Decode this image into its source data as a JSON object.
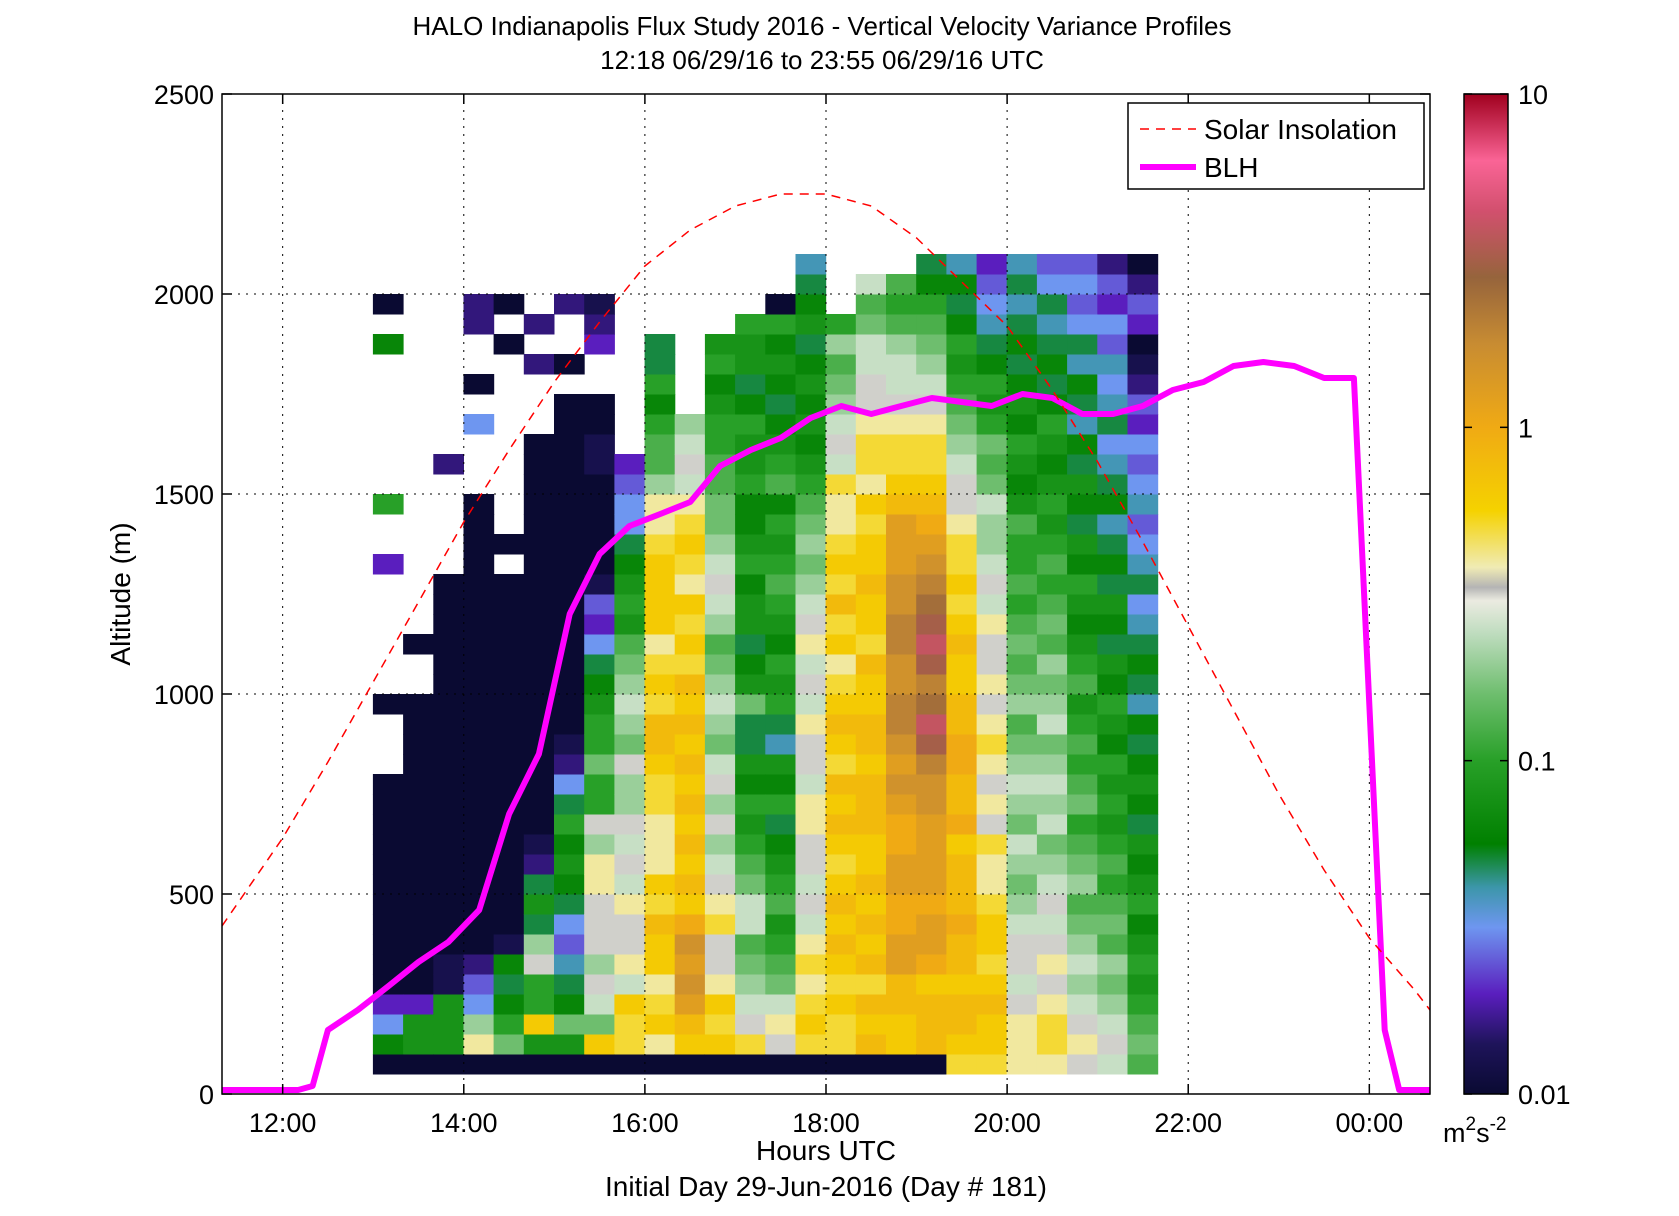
{
  "chart_data": {
    "type": "heatmap",
    "title": "HALO Indianapolis Flux Study 2016 - Vertical Velocity Variance Profiles",
    "subtitle": "12:18 06/29/16 to 23:55 06/29/16  UTC",
    "xlabel": "Hours UTC",
    "xlabel2": "Initial Day 29-Jun-2016 (Day # 181)",
    "ylabel": "Altitude (m)",
    "x_range_hours": [
      11.33,
      24.67
    ],
    "ylim": [
      0,
      2500
    ],
    "x_ticks": [
      {
        "hour": 12,
        "label": "12:00"
      },
      {
        "hour": 14,
        "label": "14:00"
      },
      {
        "hour": 16,
        "label": "16:00"
      },
      {
        "hour": 18,
        "label": "18:00"
      },
      {
        "hour": 20,
        "label": "20:00"
      },
      {
        "hour": 22,
        "label": "22:00"
      },
      {
        "hour": 24,
        "label": "00:00"
      }
    ],
    "y_ticks": [
      0,
      500,
      1000,
      1500,
      2000,
      2500
    ],
    "grid": true,
    "legend_position": "top-right",
    "colorbar": {
      "scale": "log",
      "range": [
        0.01,
        10
      ],
      "ticks": [
        {
          "value": 0.01,
          "label": "0.01"
        },
        {
          "value": 0.1,
          "label": "0.1"
        },
        {
          "value": 1,
          "label": "1"
        },
        {
          "value": 10,
          "label": "10"
        }
      ],
      "unit_base": "m",
      "unit_sup1": "2",
      "unit_mid": "s",
      "unit_sup2": "-2"
    },
    "heatmap_grid": {
      "x_start_hour": 12.33,
      "x_step_hour": 0.3333,
      "y_start_m": 50,
      "y_step_m": 50,
      "note_columns": "each column lists log10 of variance from 50 m upward; null = no data"
    },
    "heatmap_columns": [
      [],
      [],
      [
        -2,
        -1.2,
        -1.5,
        -1.7,
        -2,
        -2,
        -2,
        -2,
        -2,
        -2,
        -2,
        -2,
        -2,
        -2,
        -2,
        null,
        null,
        null,
        -2,
        null,
        null,
        null,
        null,
        null,
        null,
        -1.7,
        null,
        null,
        -1,
        null,
        null,
        null,
        null,
        null,
        null,
        null,
        -1.2,
        null,
        -2,
        null
      ],
      [
        -2,
        -1.1,
        -1.1,
        -1.7,
        -2,
        -2,
        -2,
        -2,
        -2,
        -2,
        -2,
        -2,
        -2,
        -2,
        -2,
        -2,
        -2,
        -2,
        -2,
        null,
        null,
        -2,
        null
      ],
      [
        -2,
        -1.1,
        -1.1,
        -1.1,
        -1.9,
        -1.9,
        -2,
        -2,
        -2,
        -2,
        -2,
        -2,
        -2,
        -2,
        -2,
        -2,
        -2,
        -2,
        -2,
        -2,
        -2,
        -2,
        -2,
        -2,
        -2,
        null,
        null,
        null,
        null,
        null,
        -1.8,
        null,
        null
      ],
      [
        -2,
        -0.4,
        -0.7,
        -1.5,
        -1.6,
        -1.8,
        -2,
        -2,
        -2,
        -2,
        -2,
        -2,
        -2,
        -2,
        -2,
        -2,
        -2,
        -2,
        -2,
        -2,
        -2,
        -2,
        -2,
        -2,
        -2,
        -2,
        -2,
        -2,
        -2,
        null,
        null,
        null,
        -1.5,
        null,
        -2,
        null,
        null,
        -1.8,
        -1.8
      ],
      [
        -2,
        -0.8,
        -1.0,
        -1.2,
        -1.3,
        -1.2,
        -1.9,
        -2,
        -2,
        -2,
        -2,
        -2,
        -2,
        -2,
        -2,
        -2,
        -2,
        -2,
        -2,
        -2,
        -2,
        -2,
        -2,
        -2,
        -2,
        null,
        -2,
        null,
        null,
        null,
        null,
        null,
        null,
        null,
        null,
        null,
        -2,
        null,
        -2,
        null
      ],
      [
        -2,
        -1.1,
        -0.2,
        -1.0,
        -1.0,
        -0.5,
        -0.7,
        -1.3,
        -1.1,
        -1.3,
        -1.8,
        -1.9,
        -2,
        -2,
        -2,
        -2,
        -2,
        -2,
        -2,
        -2,
        -2,
        -2,
        -2,
        -2,
        -2,
        -2,
        -2,
        -2,
        -2,
        -2,
        -2,
        -2,
        null,
        null,
        null,
        -1.8,
        null,
        -1.8,
        null
      ],
      [
        -2,
        -1.1,
        -0.8,
        -1.2,
        -1.3,
        -1.4,
        -1.6,
        -1.5,
        -1.3,
        -1.2,
        -1.1,
        -1.2,
        -1.0,
        -1.3,
        -1.5,
        -1.8,
        -1.9,
        -2,
        -2,
        -2,
        -2,
        -2,
        -2,
        -2,
        -2,
        -2,
        -2,
        -2,
        -2,
        -2,
        -2,
        -2,
        -2,
        -2,
        null,
        -2,
        null,
        null,
        -1.8
      ],
      [
        -2,
        -0.2,
        -0.8,
        -0.6,
        -0.5,
        -0.7,
        -0.5,
        -0.5,
        -0.5,
        -0.4,
        -0.4,
        -0.7,
        -0.5,
        -1.0,
        -1.0,
        -0.8,
        -1.0,
        -1.0,
        -1.1,
        -1.2,
        -1.3,
        -1.5,
        -1.7,
        -1.6,
        -1.9,
        -2,
        -2,
        -2,
        -2,
        -2,
        -1.9,
        -1.9,
        -2,
        -2,
        null,
        null,
        -1.7,
        -1.8,
        -1.9
      ],
      [
        -2,
        -0.3,
        -0.3,
        -0.2,
        -0.6,
        -0.4,
        -0.5,
        -0.5,
        -0.4,
        -0.6,
        -0.5,
        -0.6,
        -0.5,
        -0.7,
        -0.7,
        -0.5,
        -0.8,
        -0.7,
        -0.6,
        -0.7,
        -0.8,
        -0.9,
        -1.1,
        -1.0,
        -1.1,
        -1.2,
        -1.3,
        -1.5,
        -1.5,
        -1.6,
        -1.7
      ],
      [
        -2,
        -0.4,
        -0.2,
        -0.3,
        -0.4,
        -0.2,
        -0.2,
        -0.1,
        -0.3,
        -0.2,
        -0.4,
        -0.4,
        -0.4,
        -0.3,
        -0.3,
        -0.2,
        -0.1,
        -0.1,
        -0.3,
        -0.2,
        -0.3,
        -0.4,
        -0.2,
        -0.2,
        -0.2,
        -0.2,
        -0.3,
        -0.4,
        -0.4,
        -0.7,
        -0.9,
        -0.9,
        -1.0,
        -1.2,
        -1.0,
        -1.3,
        -1.3
      ],
      [
        -2,
        -0.2,
        -0.1,
        0.1,
        0.2,
        0.1,
        0.2,
        0.0,
        -0.2,
        -0.1,
        -0.2,
        -0.1,
        -0.2,
        -0.1,
        -0.2,
        -0.1,
        -0.2,
        -0.1,
        -0.2,
        -0.1,
        -0.3,
        -0.2,
        -0.3,
        -0.2,
        -0.4,
        -0.3,
        -0.2,
        -0.3,
        -0.4,
        -0.6,
        -0.5,
        -0.6,
        -0.7
      ],
      [
        -2,
        -0.2,
        -0.3,
        -0.2,
        -0.4,
        -0.5,
        -0.5,
        -0.3,
        -0.4,
        -0.5,
        -0.6,
        -0.7,
        -0.5,
        -0.7,
        -0.5,
        -0.6,
        -0.8,
        -0.7,
        -0.6,
        -0.7,
        -0.8,
        -0.9,
        -0.7,
        -0.6,
        -0.5,
        -0.6,
        -0.7,
        -0.8,
        -0.8,
        -0.9,
        -0.9,
        -1.0,
        -1.0,
        -1.1,
        -1.2,
        -1.0,
        -1.1
      ],
      [
        -2,
        -0.3,
        -0.5,
        -0.6,
        -0.7,
        -0.8,
        -0.9,
        -0.6,
        -0.6,
        -0.8,
        -0.9,
        -1.0,
        -1.1,
        -1.0,
        -1.2,
        -1.1,
        -1.3,
        -1.3,
        -0.8,
        -1.1,
        -1.2,
        -1.3,
        -1.1,
        -1.1,
        -1.2,
        -1.0,
        -1.1,
        -1.2,
        -1.2,
        -1.0,
        -1.1,
        -1.1,
        -1.0,
        -1.2,
        -1.3,
        -1.1,
        -1.1,
        -1.0
      ],
      [
        -2,
        -0.5,
        -0.4,
        -0.6,
        -0.8,
        -0.9,
        -1.0,
        -1.1,
        -0.9,
        -1.0,
        -1.1,
        -1.2,
        -1.3,
        -1.0,
        -1.2,
        -1.1,
        -1.4,
        -1.3,
        -1.0,
        -1.1,
        -1.0,
        -1.2,
        -1.1,
        -1.0,
        -0.9,
        -1.0,
        -1.1,
        -1.0,
        -1.2,
        -0.9,
        -1.0,
        -1.1,
        -1.2,
        -1.3,
        -1.2,
        -1.1,
        -1.2,
        -1.0,
        -2
      ],
      [
        -2,
        -0.3,
        -0.2,
        -0.3,
        -0.4,
        -0.3,
        -0.4,
        -0.6,
        -0.5,
        -0.6,
        -0.5,
        -0.5,
        -0.4,
        -0.4,
        -0.6,
        -0.5,
        -0.5,
        -0.4,
        -0.6,
        -0.5,
        -0.6,
        -0.4,
        -0.5,
        -0.6,
        -0.7,
        -0.8,
        -0.7,
        -0.8,
        -0.9,
        -1.0,
        -1.1,
        -1.2,
        -1.1,
        -1.2,
        -1.1,
        -1.2,
        -1.3,
        -1.1,
        -1.2,
        -1.3,
        -1.4
      ],
      [
        -2,
        -0.3,
        -0.3,
        -0.2,
        -0.3,
        -0.2,
        -0.1,
        -0.2,
        -0.1,
        -0.2,
        -0.3,
        -0.2,
        -0.1,
        -0.2,
        -0.1,
        -0.3,
        -0.2,
        -0.1,
        -0.2,
        -0.3,
        -0.4,
        -0.2,
        -0.3,
        -0.1,
        -0.3,
        -0.2,
        -0.3,
        -0.4,
        -0.4,
        -0.3,
        -0.6,
        -0.5,
        -0.6,
        -0.7,
        -0.8,
        -0.9,
        -0.7,
        -1.0
      ],
      [
        -2,
        -0.1,
        -0.2,
        -0.1,
        -0.3,
        -0.1,
        -0.2,
        -0.1,
        -0.2,
        -0.1,
        -0.2,
        -0.2,
        -0.1,
        -0.1,
        -0.1,
        -0.2,
        -0.1,
        -0.1,
        -0.2,
        -0.2,
        -0.1,
        -0.3,
        -0.2,
        -0.2,
        -0.1,
        -0.2,
        -0.2,
        -0.3,
        -0.2,
        -0.4,
        -0.3,
        -0.3,
        -0.4,
        -0.5,
        -0.5,
        -0.6,
        -0.6,
        -0.8,
        -0.9,
        -0.6
      ],
      [
        -2,
        -0.2,
        -0.2,
        -0.1,
        -0.1,
        0.1,
        0.1,
        0.0,
        0.0,
        0.1,
        0.1,
        0.0,
        0.0,
        0.1,
        0.2,
        0.1,
        0.2,
        0.3,
        0.3,
        0.2,
        0.2,
        0.3,
        0.3,
        0.2,
        0.2,
        0.1,
        0.1,
        0.1,
        -0.1,
        -0.2,
        -0.3,
        -0.3,
        -0.4,
        -0.5,
        -0.6,
        -0.6,
        -0.7,
        -0.9,
        -1.0,
        -0.9
      ],
      [
        -2,
        -0.1,
        -0.1,
        -0.1,
        -0.2,
        0.0,
        0.1,
        0.1,
        0.0,
        0.1,
        0.1,
        0.1,
        0.1,
        0.2,
        0.2,
        0.3,
        0.5,
        0.6,
        0.4,
        0.3,
        0.5,
        0.6,
        0.5,
        0.4,
        0.3,
        0.2,
        0.1,
        0.0,
        -0.1,
        -0.2,
        -0.3,
        -0.3,
        -0.4,
        -0.5,
        -0.6,
        -0.7,
        -0.8,
        -0.9,
        -1.0,
        -1.2,
        -1.3
      ],
      [
        -0.3,
        -0.2,
        -0.1,
        -0.1,
        -0.2,
        -0.1,
        -0.1,
        0.0,
        -0.1,
        -0.1,
        -0.1,
        -0.2,
        0.0,
        -0.1,
        -0.1,
        0.0,
        0.0,
        -0.1,
        -0.1,
        -0.2,
        -0.2,
        -0.1,
        -0.2,
        -0.3,
        -0.2,
        -0.3,
        -0.3,
        -0.4,
        -0.5,
        -0.5,
        -0.6,
        -0.7,
        -0.8,
        -0.9,
        -1.0,
        -1.1,
        -1.0,
        -1.2,
        -1.3,
        -1.2,
        -1.4
      ],
      [
        -0.3,
        -0.2,
        -0.2,
        -0.1,
        -0.2,
        -0.3,
        -0.2,
        -0.2,
        -0.3,
        -0.4,
        -0.4,
        -0.3,
        -0.5,
        -0.4,
        -0.5,
        -0.4,
        -0.3,
        -0.4,
        -0.5,
        -0.4,
        -0.5,
        -0.5,
        -0.4,
        -0.6,
        -0.5,
        -0.6,
        -0.7,
        -0.7,
        -0.6,
        -0.8,
        -0.9,
        -0.8,
        -1.0,
        -1.1,
        -1.0,
        -1.2,
        -1.3,
        -1.4,
        -1.5,
        -1.6,
        -1.7
      ],
      [
        -0.4,
        -0.4,
        -0.4,
        -0.5,
        -0.6,
        -0.5,
        -0.5,
        -0.6,
        -0.7,
        -0.8,
        -0.7,
        -0.6,
        -0.8,
        -0.7,
        -0.6,
        -0.7,
        -0.8,
        -0.9,
        -0.7,
        -0.8,
        -0.9,
        -0.8,
        -0.9,
        -1.0,
        -0.9,
        -1.0,
        -1.0,
        -0.9,
        -1.1,
        -1.2,
        -1.1,
        -1.0,
        -1.2,
        -1.1,
        -1.2,
        -1.3,
        -1.2,
        -1.3,
        -1.4,
        -1.3,
        -1.4
      ],
      [
        -0.4,
        -0.3,
        -0.3,
        -0.4,
        -0.5,
        -0.4,
        -0.5,
        -0.6,
        -0.5,
        -0.6,
        -0.7,
        -0.8,
        -0.6,
        -0.7,
        -0.6,
        -0.7,
        -0.8,
        -0.6,
        -0.7,
        -0.8,
        -0.7,
        -0.9,
        -0.8,
        -0.9,
        -1.0,
        -0.9,
        -1.0,
        -1.1,
        -1.0,
        -1.1,
        -1.2,
        -1.1,
        -1.0,
        -1.2,
        -1.3,
        -1.2,
        -1.3,
        -1.4,
        -1.3,
        -1.5,
        -1.6
      ],
      [
        -0.5,
        -0.4,
        -0.5,
        -0.6,
        -0.7,
        -0.6,
        -0.7,
        -0.8,
        -0.9,
        -0.7,
        -0.8,
        -0.9,
        -1.0,
        -0.8,
        -0.9,
        -1.0,
        -0.9,
        -1.0,
        -1.1,
        -0.9,
        -1.0,
        -1.1,
        -1.2,
        -1.1,
        -1.0,
        -1.2,
        -1.1,
        -1.3,
        -1.2,
        -1.1,
        -1.3,
        -1.2,
        -1.4,
        -1.3,
        -1.2,
        -1.4,
        -1.3,
        -1.5,
        -1.6,
        -1.5,
        -1.6
      ],
      [
        -0.6,
        -0.5,
        -0.6,
        -0.7,
        -0.8,
        -0.7,
        -0.9,
        -0.8,
        -0.9,
        -1.0,
        -0.9,
        -1.0,
        -1.1,
        -1.0,
        -1.1,
        -1.0,
        -1.2,
        -1.1,
        -1.0,
        -1.2,
        -1.1,
        -1.3,
        -1.2,
        -1.1,
        -1.3,
        -1.2,
        -1.3,
        -1.4,
        -1.2,
        -1.3,
        -1.4,
        -1.5,
        -1.3,
        -1.4,
        -1.5,
        -1.4,
        -1.6,
        -1.5,
        -1.7,
        -1.6,
        -1.8
      ],
      [
        -0.9,
        -0.8,
        -0.9,
        -1.0,
        -1.1,
        -1.0,
        -1.1,
        -1.2,
        -1.0,
        -1.1,
        -1.2,
        -1.1,
        -1.3,
        -1.2,
        -1.1,
        -1.2,
        -1.3,
        -1.2,
        -1.4,
        -1.3,
        -1.2,
        -1.3,
        -1.4,
        -1.5,
        -1.3,
        -1.4,
        -1.5,
        -1.6,
        -1.4,
        -1.5,
        -1.6,
        -1.5,
        -1.7,
        -1.6,
        -1.8,
        -1.9,
        -2.0,
        -1.7,
        -1.6,
        -1.8,
        -2.0
      ]
    ],
    "series": [
      {
        "name": "BLH",
        "x_hours": [
          11.33,
          12.17,
          12.33,
          12.5,
          12.83,
          13.17,
          13.5,
          13.83,
          14.17,
          14.5,
          14.83,
          15.17,
          15.5,
          15.83,
          16.17,
          16.5,
          16.83,
          17.17,
          17.5,
          17.83,
          18.17,
          18.5,
          18.83,
          19.17,
          19.5,
          19.83,
          20.17,
          20.5,
          20.83,
          21.17,
          21.5,
          21.83,
          22.17,
          22.5,
          22.83,
          23.17,
          23.5,
          23.83,
          24.17,
          24.33,
          24.67
        ],
        "altitude_m": [
          10,
          10,
          20,
          160,
          210,
          270,
          330,
          380,
          460,
          700,
          850,
          1200,
          1350,
          1420,
          1450,
          1480,
          1570,
          1610,
          1640,
          1690,
          1720,
          1700,
          1720,
          1740,
          1730,
          1720,
          1750,
          1740,
          1700,
          1700,
          1720,
          1760,
          1780,
          1820,
          1830,
          1820,
          1790,
          1790,
          160,
          10,
          10
        ]
      },
      {
        "name": "Solar Insolation",
        "x_hours": [
          11.33,
          12.0,
          12.5,
          13.0,
          13.5,
          14.0,
          14.5,
          15.0,
          15.5,
          16.0,
          16.5,
          17.0,
          17.5,
          18.0,
          18.5,
          19.0,
          19.5,
          20.0,
          20.5,
          21.0,
          21.5,
          22.0,
          22.5,
          23.0,
          23.5,
          24.0,
          24.5,
          24.67
        ],
        "altitude_m": [
          420,
          640,
          830,
          1030,
          1230,
          1430,
          1610,
          1780,
          1930,
          2070,
          2160,
          2220,
          2250,
          2250,
          2220,
          2140,
          2030,
          1920,
          1760,
          1580,
          1380,
          1170,
          960,
          750,
          560,
          390,
          260,
          210
        ]
      }
    ]
  }
}
